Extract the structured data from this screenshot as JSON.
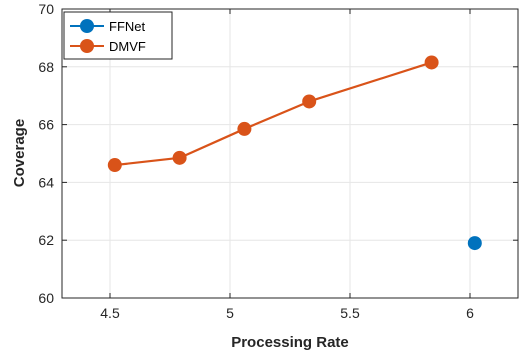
{
  "chart_data": {
    "type": "line",
    "xlabel": "Processing Rate",
    "ylabel": "Coverage",
    "xlim": [
      4.3,
      6.2
    ],
    "ylim": [
      60,
      70
    ],
    "xticks": [
      4.5,
      5,
      5.5,
      6
    ],
    "xtick_labels": [
      "4.5",
      "5",
      "5.5",
      "6"
    ],
    "yticks": [
      60,
      62,
      64,
      66,
      68,
      70
    ],
    "ytick_labels": [
      "60",
      "62",
      "64",
      "66",
      "68",
      "70"
    ],
    "grid": true,
    "legend_position": "top-left",
    "series": [
      {
        "name": "FFNet",
        "color": "#0072BD",
        "style": "marker-only",
        "x": [
          6.02
        ],
        "y": [
          61.9
        ]
      },
      {
        "name": "DMVF",
        "color": "#D95319",
        "style": "line-marker",
        "x": [
          4.52,
          4.79,
          5.06,
          5.33,
          5.84
        ],
        "y": [
          64.6,
          64.85,
          65.85,
          66.8,
          68.15
        ]
      }
    ]
  }
}
